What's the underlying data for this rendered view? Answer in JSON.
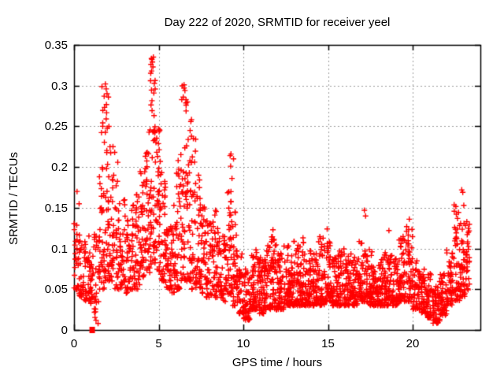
{
  "chart_data": {
    "type": "scatter",
    "title": "Day 222 of 2020, SRMTID for receiver yeel",
    "xlabel": "GPS time / hours",
    "ylabel": "SRMTID / TECUs",
    "xlim": [
      0,
      24
    ],
    "ylim": [
      0,
      0.35
    ],
    "xticks": [
      0,
      5,
      10,
      15,
      20
    ],
    "xtick_labels": [
      "0",
      "5",
      "10",
      "15",
      "20"
    ],
    "yticks": [
      0,
      0.05,
      0.1,
      0.15,
      0.2,
      0.25,
      0.3,
      0.35
    ],
    "ytick_labels": [
      "0",
      "0.05",
      "0.1",
      "0.15",
      "0.2",
      "0.25",
      "0.3",
      "0.35"
    ],
    "legend": "none",
    "grid": {
      "shown": true,
      "style": "dashed",
      "color": "#9e9e9e"
    },
    "axis_color": "#000000",
    "background_color": "#ffffff",
    "marker": {
      "shape": "plus",
      "color": "#ff0000",
      "size": 7
    },
    "series_name": "SRMTID",
    "seed": 222,
    "note": "Dense scatter of ~2700 red plus markers; density_bins give [x_start,x_end,count,y_min,y_max,skew] envelopes read from the plot; notable_points are individually visible extremes.",
    "density_bins": [
      [
        0.0,
        0.3,
        26,
        0.05,
        0.135,
        1.7
      ],
      [
        0.3,
        0.6,
        30,
        0.04,
        0.125,
        1.7
      ],
      [
        0.6,
        0.9,
        30,
        0.035,
        0.12,
        1.6
      ],
      [
        0.9,
        1.2,
        28,
        0.03,
        0.115,
        1.6
      ],
      [
        1.2,
        1.5,
        30,
        0.015,
        0.14,
        1.4
      ],
      [
        1.5,
        1.8,
        38,
        0.05,
        0.3,
        1.8
      ],
      [
        1.8,
        2.1,
        42,
        0.06,
        0.295,
        1.6
      ],
      [
        2.1,
        2.4,
        32,
        0.06,
        0.23,
        1.6
      ],
      [
        2.4,
        2.7,
        30,
        0.05,
        0.21,
        1.7
      ],
      [
        2.7,
        3.0,
        30,
        0.05,
        0.165,
        1.7
      ],
      [
        3.0,
        3.3,
        30,
        0.045,
        0.145,
        1.6
      ],
      [
        3.3,
        3.6,
        30,
        0.05,
        0.155,
        1.6
      ],
      [
        3.6,
        3.9,
        32,
        0.05,
        0.17,
        1.6
      ],
      [
        3.9,
        4.2,
        34,
        0.06,
        0.195,
        1.5
      ],
      [
        4.2,
        4.5,
        40,
        0.07,
        0.25,
        1.5
      ],
      [
        4.5,
        4.8,
        50,
        0.08,
        0.335,
        1.3
      ],
      [
        4.8,
        5.1,
        42,
        0.07,
        0.27,
        1.5
      ],
      [
        5.1,
        5.4,
        36,
        0.06,
        0.2,
        1.6
      ],
      [
        5.4,
        5.7,
        32,
        0.05,
        0.15,
        1.7
      ],
      [
        5.7,
        6.0,
        32,
        0.045,
        0.13,
        1.7
      ],
      [
        6.0,
        6.3,
        34,
        0.05,
        0.2,
        1.7
      ],
      [
        6.3,
        6.6,
        40,
        0.06,
        0.3,
        1.5
      ],
      [
        6.6,
        6.9,
        40,
        0.06,
        0.295,
        1.6
      ],
      [
        6.9,
        7.2,
        34,
        0.05,
        0.26,
        1.7
      ],
      [
        7.2,
        7.5,
        32,
        0.05,
        0.19,
        1.7
      ],
      [
        7.5,
        7.8,
        32,
        0.045,
        0.155,
        1.7
      ],
      [
        7.8,
        8.1,
        32,
        0.04,
        0.135,
        1.7
      ],
      [
        8.1,
        8.4,
        32,
        0.04,
        0.15,
        1.7
      ],
      [
        8.4,
        8.7,
        32,
        0.04,
        0.125,
        1.7
      ],
      [
        8.7,
        9.0,
        32,
        0.035,
        0.115,
        1.7
      ],
      [
        9.0,
        9.3,
        34,
        0.04,
        0.175,
        1.5
      ],
      [
        9.3,
        9.6,
        34,
        0.03,
        0.165,
        1.8
      ],
      [
        9.6,
        10.0,
        45,
        0.02,
        0.1,
        1.8
      ],
      [
        10.0,
        10.4,
        50,
        0.012,
        0.075,
        1.5
      ],
      [
        10.4,
        10.8,
        50,
        0.025,
        0.1,
        1.7
      ],
      [
        10.8,
        11.2,
        50,
        0.02,
        0.09,
        1.6
      ],
      [
        11.2,
        11.6,
        50,
        0.025,
        0.105,
        1.7
      ],
      [
        11.6,
        12.0,
        50,
        0.025,
        0.12,
        1.8
      ],
      [
        12.0,
        12.4,
        50,
        0.025,
        0.095,
        1.7
      ],
      [
        12.4,
        12.8,
        50,
        0.03,
        0.105,
        1.7
      ],
      [
        12.8,
        13.2,
        50,
        0.03,
        0.11,
        1.7
      ],
      [
        13.2,
        13.6,
        50,
        0.03,
        0.115,
        1.7
      ],
      [
        13.6,
        14.0,
        50,
        0.03,
        0.1,
        1.7
      ],
      [
        14.0,
        14.4,
        48,
        0.03,
        0.095,
        1.6
      ],
      [
        14.4,
        14.8,
        48,
        0.03,
        0.115,
        1.7
      ],
      [
        14.8,
        15.2,
        48,
        0.035,
        0.11,
        1.7
      ],
      [
        15.2,
        15.6,
        48,
        0.03,
        0.09,
        1.6
      ],
      [
        15.6,
        16.0,
        48,
        0.03,
        0.1,
        1.7
      ],
      [
        16.0,
        16.4,
        48,
        0.03,
        0.095,
        1.7
      ],
      [
        16.4,
        16.8,
        48,
        0.03,
        0.09,
        1.7
      ],
      [
        16.8,
        17.2,
        48,
        0.035,
        0.11,
        1.7
      ],
      [
        17.2,
        17.6,
        48,
        0.03,
        0.1,
        1.7
      ],
      [
        17.6,
        18.0,
        48,
        0.03,
        0.09,
        1.7
      ],
      [
        18.0,
        18.4,
        48,
        0.03,
        0.095,
        1.7
      ],
      [
        18.4,
        18.8,
        48,
        0.03,
        0.1,
        1.7
      ],
      [
        18.8,
        19.2,
        48,
        0.03,
        0.09,
        1.7
      ],
      [
        19.2,
        19.6,
        46,
        0.035,
        0.115,
        1.6
      ],
      [
        19.6,
        20.0,
        46,
        0.035,
        0.135,
        1.7
      ],
      [
        20.0,
        20.4,
        46,
        0.025,
        0.085,
        1.6
      ],
      [
        20.4,
        20.8,
        46,
        0.02,
        0.075,
        1.6
      ],
      [
        20.8,
        21.2,
        46,
        0.015,
        0.07,
        1.5
      ],
      [
        21.2,
        21.6,
        46,
        0.008,
        0.06,
        1.4
      ],
      [
        21.6,
        22.0,
        46,
        0.018,
        0.07,
        1.5
      ],
      [
        22.0,
        22.4,
        48,
        0.03,
        0.1,
        1.6
      ],
      [
        22.4,
        22.8,
        48,
        0.035,
        0.155,
        1.7
      ],
      [
        22.8,
        23.1,
        40,
        0.04,
        0.135,
        1.4
      ],
      [
        23.1,
        23.35,
        28,
        0.045,
        0.13,
        1.3
      ]
    ],
    "notable_points": [
      [
        0.18,
        0.17
      ],
      [
        0.3,
        0.155
      ],
      [
        1.3,
        0.012
      ],
      [
        1.42,
        0.008
      ],
      [
        1.78,
        0.287
      ],
      [
        1.85,
        0.302
      ],
      [
        1.9,
        0.296
      ],
      [
        1.95,
        0.29
      ],
      [
        2.3,
        0.225
      ],
      [
        2.4,
        0.218
      ],
      [
        4.52,
        0.306
      ],
      [
        4.58,
        0.318
      ],
      [
        4.6,
        0.332
      ],
      [
        4.63,
        0.329
      ],
      [
        4.66,
        0.323
      ],
      [
        5.9,
        0.153
      ],
      [
        6.15,
        0.208
      ],
      [
        6.45,
        0.286
      ],
      [
        6.5,
        0.301
      ],
      [
        6.55,
        0.294
      ],
      [
        6.62,
        0.276
      ],
      [
        6.9,
        0.256
      ],
      [
        7.05,
        0.235
      ],
      [
        9.22,
        0.214
      ],
      [
        9.27,
        0.216
      ],
      [
        9.25,
        0.201
      ],
      [
        9.33,
        0.186
      ],
      [
        9.42,
        0.21
      ],
      [
        11.75,
        0.123
      ],
      [
        12.6,
        0.101
      ],
      [
        13.35,
        0.102
      ],
      [
        14.95,
        0.124
      ],
      [
        17.15,
        0.147
      ],
      [
        17.22,
        0.14
      ],
      [
        18.6,
        0.122
      ],
      [
        19.8,
        0.136
      ],
      [
        22.9,
        0.172
      ],
      [
        22.96,
        0.169
      ],
      [
        23.02,
        0.153
      ],
      [
        23.2,
        0.133
      ]
    ],
    "zero_point": {
      "x": 1.05,
      "y": 0,
      "style": "square"
    }
  }
}
